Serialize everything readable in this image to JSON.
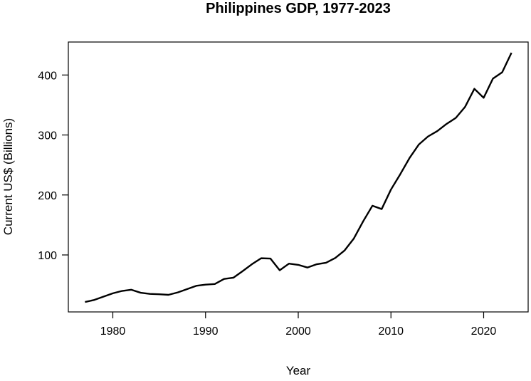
{
  "chart_data": {
    "type": "line",
    "title": "Philippines GDP, 1977-2023",
    "xlabel": "Year",
    "ylabel": "Current US$ (Billions)",
    "xlim": [
      1975.2,
      2024.8
    ],
    "ylim": [
      5,
      455
    ],
    "x_ticks": [
      1980,
      1990,
      2000,
      2010,
      2020
    ],
    "y_ticks": [
      100,
      200,
      300,
      400
    ],
    "grid": false,
    "colors": {
      "line": "#000000",
      "frame": "#000000"
    },
    "series": [
      {
        "x": [
          1977,
          1978,
          1979,
          1980,
          1981,
          1982,
          1983,
          1984,
          1985,
          1986,
          1987,
          1988,
          1989,
          1990,
          1991,
          1992,
          1993,
          1994,
          1995,
          1996,
          1997,
          1998,
          1999,
          2000,
          2001,
          2002,
          2003,
          2004,
          2005,
          2006,
          2007,
          2008,
          2009,
          2010,
          2011,
          2012,
          2013,
          2014,
          2015,
          2016,
          2017,
          2018,
          2019,
          2020,
          2021,
          2022,
          2023
        ],
        "values": [
          21.5,
          25.0,
          30.5,
          36.0,
          40.0,
          42.0,
          37.0,
          35.0,
          34.5,
          33.5,
          37.5,
          43.0,
          48.5,
          50.5,
          51.5,
          60.0,
          62.0,
          73.0,
          84.5,
          94.5,
          94.0,
          74.5,
          85.5,
          83.5,
          79.0,
          84.5,
          87.0,
          95.0,
          107.5,
          127.5,
          156.0,
          182.0,
          176.5,
          209.0,
          234.5,
          261.5,
          284.0,
          297.5,
          306.5,
          318.5,
          328.5,
          347.0,
          377.0,
          362.0,
          394.0,
          404.5,
          437.0
        ]
      }
    ]
  }
}
